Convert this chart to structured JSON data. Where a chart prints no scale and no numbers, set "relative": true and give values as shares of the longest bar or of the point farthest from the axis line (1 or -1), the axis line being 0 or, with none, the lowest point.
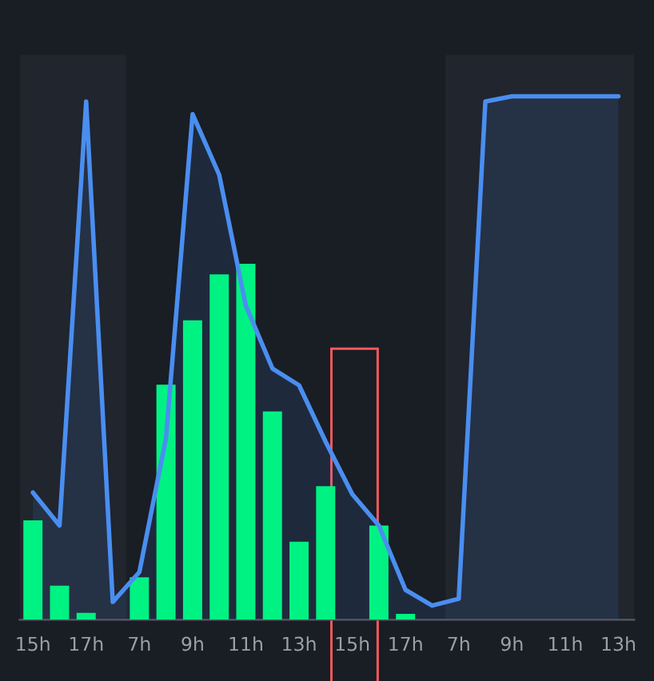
{
  "chart_data": {
    "type": "bar",
    "relative": true,
    "categories": [
      "15h",
      null,
      "17h",
      null,
      "7h",
      null,
      "9h",
      null,
      "11h",
      null,
      "13h",
      null,
      "15h",
      null,
      "17h",
      null,
      "7h",
      null,
      "9h",
      null,
      "11h",
      null,
      "13h"
    ],
    "series": [
      {
        "color": "#00f283",
        "values": [
          0.19,
          0.065,
          0.013,
          null,
          0.081,
          0.449,
          0.572,
          0.66,
          0.68,
          0.398,
          0.149,
          0.255,
          null,
          0.18,
          0.011,
          null,
          null,
          null,
          null,
          null,
          null,
          null,
          null
        ]
      },
      {
        "type": "area",
        "color": "#4a8ef0",
        "values": [
          0.243,
          0.18,
          0.99,
          0.034,
          0.091,
          0.347,
          0.966,
          0.85,
          0.6,
          0.48,
          0.448,
          0.34,
          0.24,
          0.18,
          0.057,
          0.027,
          0.04,
          0.99,
          1,
          1,
          1,
          1,
          1
        ]
      }
    ],
    "legend": false
  }
}
